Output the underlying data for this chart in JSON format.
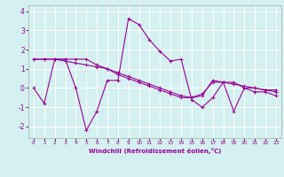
{
  "xlabel": "Windchill (Refroidissement éolien,°C)",
  "background_color": "#d4f0f0",
  "grid_color": "#ffffff",
  "line_color": "#990099",
  "xlim": [
    -0.5,
    23.5
  ],
  "ylim": [
    -2.6,
    4.3
  ],
  "yticks": [
    -2,
    -1,
    0,
    1,
    2,
    3,
    4
  ],
  "xticks": [
    0,
    1,
    2,
    3,
    4,
    5,
    6,
    7,
    8,
    9,
    10,
    11,
    12,
    13,
    14,
    15,
    16,
    17,
    18,
    19,
    20,
    21,
    22,
    23
  ],
  "hours": [
    0,
    1,
    2,
    3,
    4,
    5,
    6,
    7,
    8,
    9,
    10,
    11,
    12,
    13,
    14,
    15,
    16,
    17,
    18,
    19,
    20,
    21,
    22,
    23
  ],
  "line1": [
    0.0,
    -0.8,
    1.5,
    1.5,
    0.0,
    -2.2,
    -1.2,
    0.4,
    0.4,
    3.6,
    3.3,
    2.5,
    1.9,
    1.4,
    1.5,
    -0.6,
    -1.0,
    -0.5,
    0.3,
    -1.2,
    0.0,
    -0.2,
    -0.2,
    -0.4
  ],
  "line2": [
    1.5,
    1.5,
    1.5,
    1.5,
    1.5,
    1.5,
    1.2,
    1.0,
    0.7,
    0.5,
    0.3,
    0.1,
    -0.1,
    -0.3,
    -0.5,
    -0.5,
    -0.3,
    0.3,
    0.3,
    0.3,
    0.0,
    0.0,
    -0.1,
    -0.1
  ],
  "line3": [
    1.5,
    1.5,
    1.5,
    1.4,
    1.3,
    1.2,
    1.1,
    1.0,
    0.8,
    0.6,
    0.4,
    0.2,
    0.0,
    -0.2,
    -0.4,
    -0.5,
    -0.4,
    0.4,
    0.3,
    0.2,
    0.1,
    0.0,
    -0.1,
    -0.2
  ],
  "xtick_labels": [
    "0",
    "1",
    "2",
    "3",
    "4",
    "5",
    "6",
    "7",
    "8",
    "9",
    "10",
    "11",
    "12",
    "13",
    "14",
    "15",
    "16",
    "17",
    "18",
    "19",
    "20",
    "21",
    "22",
    "23"
  ]
}
